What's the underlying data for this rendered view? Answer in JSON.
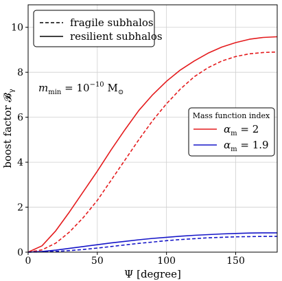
{
  "chart_data": {
    "type": "line",
    "xlabel": "Ψ [degree]",
    "ylabel": "boost factor 𝓑",
    "ylabel_sub": "γ",
    "xlim": [
      0,
      180
    ],
    "ylim": [
      0,
      11
    ],
    "xticks": [
      0,
      50,
      100,
      150
    ],
    "yticks": [
      0,
      2,
      4,
      6,
      8,
      10
    ],
    "grid": true,
    "annotation": {
      "lhs": "m",
      "lhs_sub": "min",
      "mid": " = 10",
      "exp": "−10",
      "unit": " M",
      "unit_sub": "⊙"
    },
    "legend_style": {
      "position": "top-left",
      "entries": [
        {
          "label": "fragile subhalos",
          "dash": "dashed"
        },
        {
          "label": "resilient subhalos",
          "dash": "solid"
        }
      ]
    },
    "legend_index": {
      "position": "right",
      "title": "Mass function index",
      "entries": [
        {
          "lhs": "α",
          "sub": "m",
          "rhs": " = 2",
          "color": "#e41a1c"
        },
        {
          "lhs": "α",
          "sub": "m",
          "rhs": " = 1.9",
          "color": "#1515c8"
        }
      ]
    },
    "x": [
      0,
      10,
      20,
      30,
      40,
      50,
      60,
      70,
      80,
      90,
      100,
      110,
      120,
      130,
      140,
      150,
      160,
      170,
      180
    ],
    "series": [
      {
        "alpha": "2",
        "style": "resilient",
        "color": "#e41a1c",
        "dash": "solid",
        "values": [
          0.0,
          0.28,
          0.95,
          1.8,
          2.7,
          3.6,
          4.55,
          5.45,
          6.3,
          7.0,
          7.6,
          8.1,
          8.5,
          8.85,
          9.12,
          9.32,
          9.47,
          9.55,
          9.58
        ]
      },
      {
        "alpha": "2",
        "style": "fragile",
        "color": "#e41a1c",
        "dash": "dashed",
        "values": [
          0.0,
          0.1,
          0.4,
          0.9,
          1.55,
          2.3,
          3.2,
          4.1,
          5.0,
          5.85,
          6.6,
          7.25,
          7.8,
          8.2,
          8.5,
          8.7,
          8.82,
          8.88,
          8.9
        ]
      },
      {
        "alpha": "1.9",
        "style": "resilient",
        "color": "#1515c8",
        "dash": "solid",
        "values": [
          0.0,
          0.03,
          0.09,
          0.17,
          0.25,
          0.33,
          0.41,
          0.48,
          0.55,
          0.61,
          0.66,
          0.71,
          0.75,
          0.78,
          0.81,
          0.83,
          0.85,
          0.86,
          0.86
        ]
      },
      {
        "alpha": "1.9",
        "style": "fragile",
        "color": "#1515c8",
        "dash": "dashed",
        "values": [
          0.0,
          0.01,
          0.03,
          0.07,
          0.12,
          0.18,
          0.25,
          0.32,
          0.39,
          0.45,
          0.51,
          0.56,
          0.6,
          0.64,
          0.66,
          0.68,
          0.69,
          0.7,
          0.7
        ]
      }
    ]
  }
}
